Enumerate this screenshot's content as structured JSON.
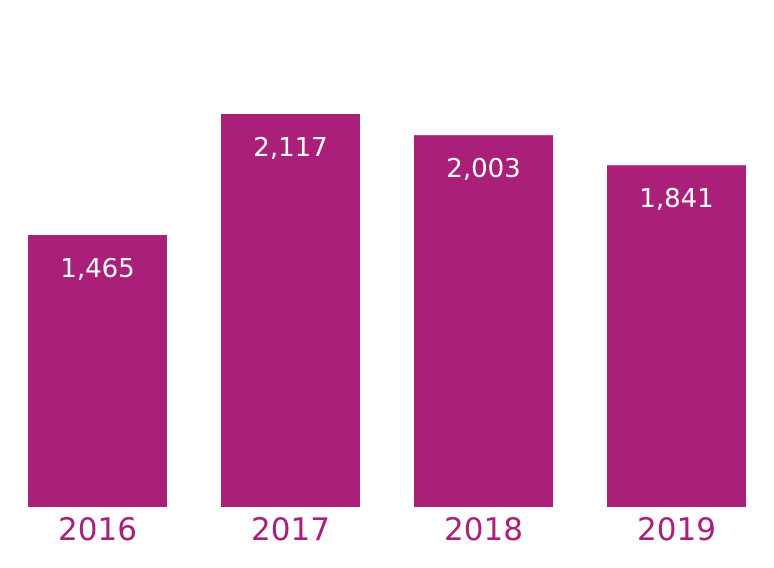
{
  "chart_data": {
    "type": "bar",
    "categories": [
      "2016",
      "2017",
      "2018",
      "2019"
    ],
    "values": [
      1465,
      2117,
      2003,
      1841
    ],
    "value_labels": [
      "1,465",
      "2,117",
      "2,003",
      "1,841"
    ],
    "title": "",
    "xlabel": "",
    "ylabel": "",
    "ylim": [
      0,
      2117
    ],
    "grid": false,
    "legend": "none"
  },
  "colors": {
    "bar": "#aa1f7a",
    "tick_text": "#aa1f7a",
    "value_text": "#ffffff"
  }
}
